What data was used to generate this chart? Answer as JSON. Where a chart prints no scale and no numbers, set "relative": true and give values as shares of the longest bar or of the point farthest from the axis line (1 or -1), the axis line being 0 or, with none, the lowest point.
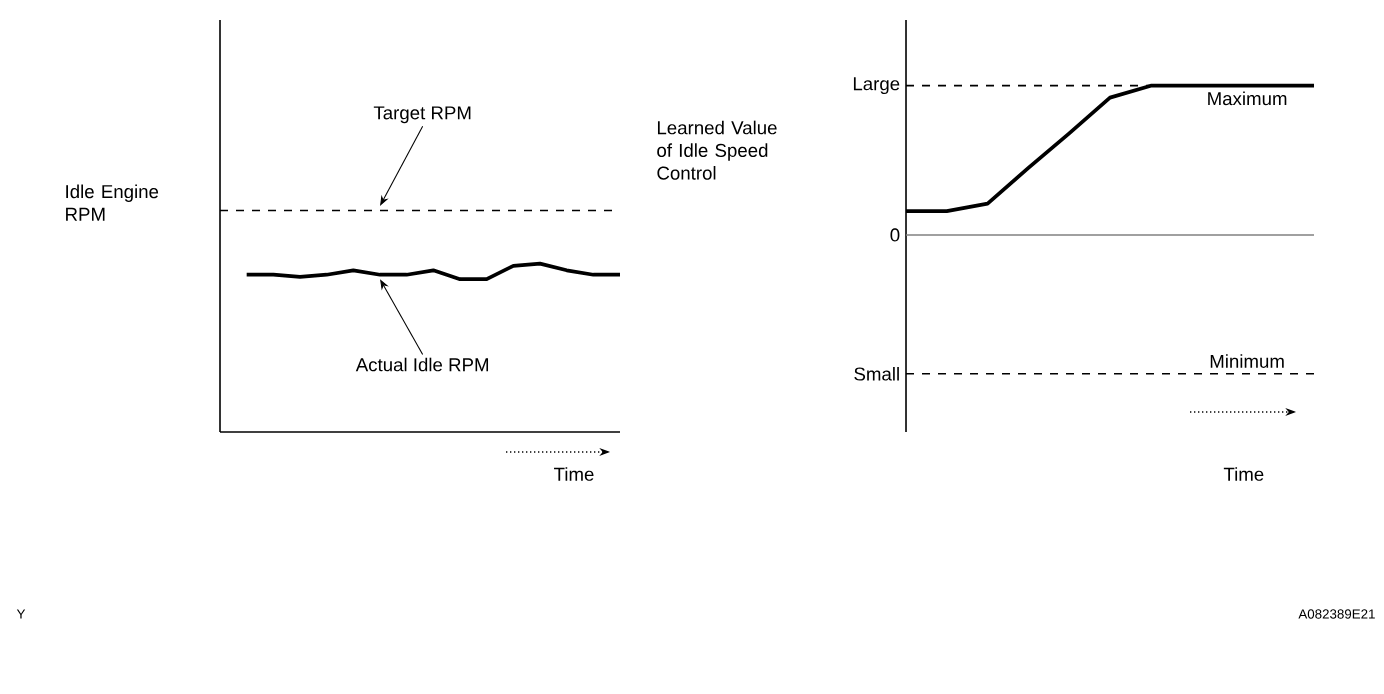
{
  "chart_data": [
    {
      "type": "line",
      "relative": true,
      "xlabel": "Time",
      "ylabel": "Idle Engine RPM",
      "categories": [
        null,
        null,
        null,
        null,
        null,
        null,
        null,
        null,
        null,
        null,
        null,
        null,
        null,
        null,
        null,
        null
      ],
      "series": [
        {
          "name": "Target RPM",
          "color": "#000000",
          "line_style": "dashed",
          "values": [
            1,
            1,
            1,
            1,
            1,
            1,
            1,
            1,
            1,
            1,
            1,
            1,
            1,
            1,
            1,
            1
          ]
        },
        {
          "name": "Actual Idle RPM",
          "color": "#000000",
          "line_style": "solid",
          "values": [
            null,
            0.71,
            0.71,
            0.7,
            0.71,
            0.73,
            0.71,
            0.71,
            0.73,
            0.69,
            0.69,
            0.75,
            0.76,
            0.73,
            0.71,
            0.71
          ]
        }
      ],
      "annotations": [
        "Y"
      ]
    },
    {
      "type": "line",
      "relative": true,
      "xlabel": "Time",
      "ylabel": "Learned Value of Idle Speed Control",
      "categories": [
        null,
        null,
        null,
        null,
        null,
        null,
        null,
        null,
        null,
        null,
        null
      ],
      "series": [
        {
          "color": "#000000",
          "line_style": "solid",
          "values": [
            0.16,
            0.16,
            0.21,
            0.45,
            0.68,
            0.92,
            1,
            1,
            1,
            1,
            1
          ]
        }
      ],
      "ref_lines": [
        {
          "axis": "y",
          "value": 1,
          "label": "Maximum",
          "color": "#000000",
          "line_style": "dashed"
        },
        {
          "axis": "y",
          "value": 0,
          "color": "#808080",
          "line_style": "solid"
        },
        {
          "axis": "y",
          "value": -0.93,
          "label": "Minimum",
          "color": "#000000",
          "line_style": "dashed"
        }
      ],
      "annotations": [
        "A082389E21",
        "Large",
        "0",
        "Small"
      ]
    }
  ]
}
